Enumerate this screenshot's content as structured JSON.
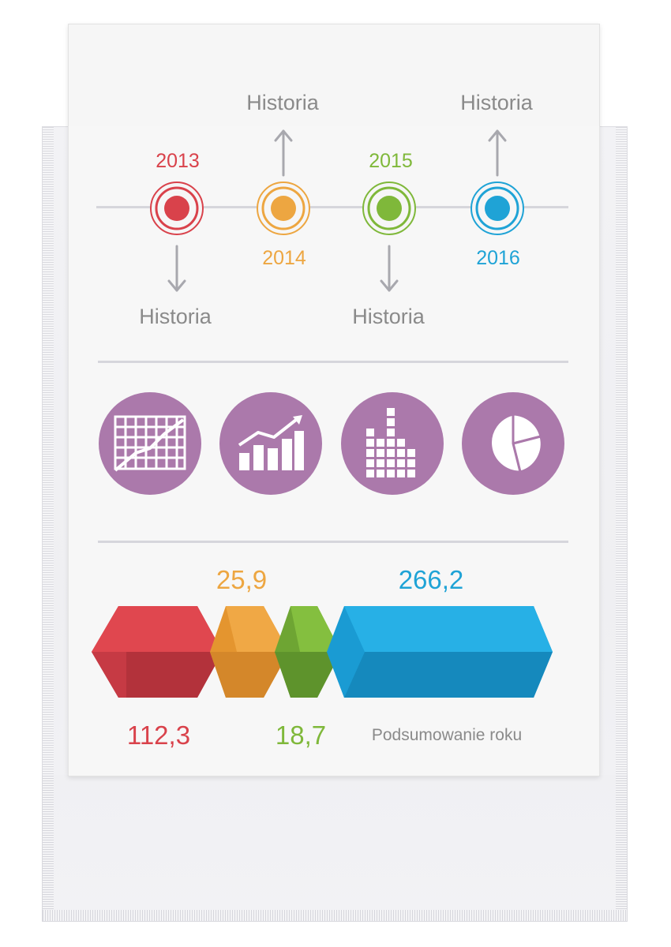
{
  "timeline": {
    "events": [
      {
        "year": "2013",
        "caption": "Historia",
        "color": "#d9424b"
      },
      {
        "year": "2014",
        "caption": "Historia",
        "color": "#eda641"
      },
      {
        "year": "2015",
        "caption": "Historia",
        "color": "#7fb83a"
      },
      {
        "year": "2016",
        "caption": "Historia",
        "color": "#1fa3d6"
      }
    ]
  },
  "icons": [
    {
      "name": "grid-line-chart-icon"
    },
    {
      "name": "growth-bar-chart-icon"
    },
    {
      "name": "histogram-icon"
    },
    {
      "name": "pie-chart-icon"
    }
  ],
  "summary": {
    "values": [
      {
        "value": "112,3",
        "color": "#d9424b"
      },
      {
        "value": "25,9",
        "color": "#eda641"
      },
      {
        "value": "18,7",
        "color": "#7fb83a"
      },
      {
        "value": "266,2",
        "color": "#1fa3d6"
      }
    ],
    "caption": "Podsumowanie roku"
  },
  "colors": {
    "icon_bg": "#ab79ab",
    "divider": "#d6d6dc",
    "arrow": "#a8a8ae"
  }
}
